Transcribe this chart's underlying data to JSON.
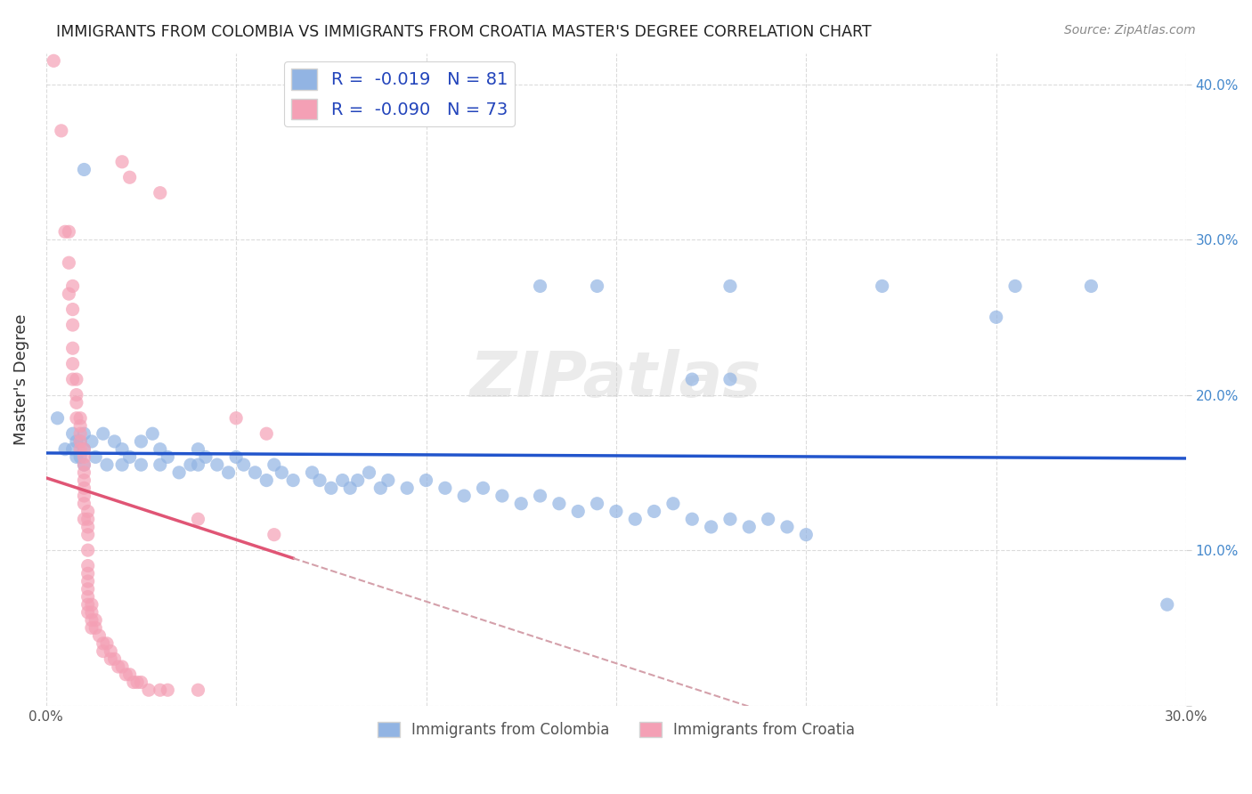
{
  "title": "IMMIGRANTS FROM COLOMBIA VS IMMIGRANTS FROM CROATIA MASTER'S DEGREE CORRELATION CHART",
  "source": "Source: ZipAtlas.com",
  "ylabel": "Master's Degree",
  "xlim": [
    0.0,
    0.3
  ],
  "ylim": [
    0.0,
    0.42
  ],
  "colombia_color": "#92b4e3",
  "croatia_color": "#f4a0b5",
  "colombia_R": -0.019,
  "colombia_N": 81,
  "croatia_R": -0.09,
  "croatia_N": 73,
  "watermark": "ZIPatlas",
  "colombia_scatter_x": [
    0.003,
    0.005,
    0.007,
    0.007,
    0.008,
    0.008,
    0.009,
    0.009,
    0.01,
    0.01,
    0.01,
    0.012,
    0.013,
    0.015,
    0.016,
    0.018,
    0.02,
    0.02,
    0.022,
    0.025,
    0.025,
    0.028,
    0.03,
    0.03,
    0.032,
    0.035,
    0.038,
    0.04,
    0.04,
    0.042,
    0.045,
    0.048,
    0.05,
    0.052,
    0.055,
    0.058,
    0.06,
    0.062,
    0.065,
    0.07,
    0.072,
    0.075,
    0.078,
    0.08,
    0.082,
    0.085,
    0.088,
    0.09,
    0.095,
    0.1,
    0.105,
    0.11,
    0.115,
    0.12,
    0.125,
    0.13,
    0.135,
    0.14,
    0.145,
    0.15,
    0.155,
    0.16,
    0.165,
    0.17,
    0.175,
    0.18,
    0.185,
    0.19,
    0.195,
    0.2,
    0.01,
    0.13,
    0.145,
    0.18,
    0.22,
    0.255,
    0.275,
    0.25,
    0.17,
    0.18,
    0.295
  ],
  "colombia_scatter_y": [
    0.185,
    0.165,
    0.175,
    0.165,
    0.17,
    0.16,
    0.17,
    0.16,
    0.175,
    0.165,
    0.155,
    0.17,
    0.16,
    0.175,
    0.155,
    0.17,
    0.165,
    0.155,
    0.16,
    0.17,
    0.155,
    0.175,
    0.165,
    0.155,
    0.16,
    0.15,
    0.155,
    0.165,
    0.155,
    0.16,
    0.155,
    0.15,
    0.16,
    0.155,
    0.15,
    0.145,
    0.155,
    0.15,
    0.145,
    0.15,
    0.145,
    0.14,
    0.145,
    0.14,
    0.145,
    0.15,
    0.14,
    0.145,
    0.14,
    0.145,
    0.14,
    0.135,
    0.14,
    0.135,
    0.13,
    0.135,
    0.13,
    0.125,
    0.13,
    0.125,
    0.12,
    0.125,
    0.13,
    0.12,
    0.115,
    0.12,
    0.115,
    0.12,
    0.115,
    0.11,
    0.345,
    0.27,
    0.27,
    0.27,
    0.27,
    0.27,
    0.27,
    0.25,
    0.21,
    0.21,
    0.065
  ],
  "croatia_scatter_x": [
    0.002,
    0.004,
    0.005,
    0.006,
    0.006,
    0.006,
    0.007,
    0.007,
    0.007,
    0.007,
    0.007,
    0.007,
    0.008,
    0.008,
    0.008,
    0.008,
    0.009,
    0.009,
    0.009,
    0.009,
    0.009,
    0.01,
    0.01,
    0.01,
    0.01,
    0.01,
    0.01,
    0.01,
    0.01,
    0.01,
    0.011,
    0.011,
    0.011,
    0.011,
    0.011,
    0.011,
    0.011,
    0.011,
    0.011,
    0.011,
    0.011,
    0.011,
    0.012,
    0.012,
    0.012,
    0.012,
    0.013,
    0.013,
    0.014,
    0.015,
    0.015,
    0.016,
    0.017,
    0.017,
    0.018,
    0.019,
    0.02,
    0.021,
    0.022,
    0.023,
    0.024,
    0.025,
    0.027,
    0.03,
    0.032,
    0.04,
    0.05,
    0.058,
    0.02,
    0.022,
    0.03,
    0.04,
    0.06
  ],
  "croatia_scatter_y": [
    0.415,
    0.37,
    0.305,
    0.305,
    0.285,
    0.265,
    0.27,
    0.255,
    0.245,
    0.23,
    0.22,
    0.21,
    0.21,
    0.2,
    0.195,
    0.185,
    0.185,
    0.18,
    0.175,
    0.17,
    0.165,
    0.165,
    0.16,
    0.155,
    0.15,
    0.145,
    0.14,
    0.135,
    0.13,
    0.12,
    0.125,
    0.12,
    0.115,
    0.11,
    0.1,
    0.09,
    0.085,
    0.08,
    0.075,
    0.07,
    0.065,
    0.06,
    0.065,
    0.06,
    0.055,
    0.05,
    0.055,
    0.05,
    0.045,
    0.04,
    0.035,
    0.04,
    0.035,
    0.03,
    0.03,
    0.025,
    0.025,
    0.02,
    0.02,
    0.015,
    0.015,
    0.015,
    0.01,
    0.01,
    0.01,
    0.01,
    0.185,
    0.175,
    0.35,
    0.34,
    0.33,
    0.12,
    0.11
  ]
}
